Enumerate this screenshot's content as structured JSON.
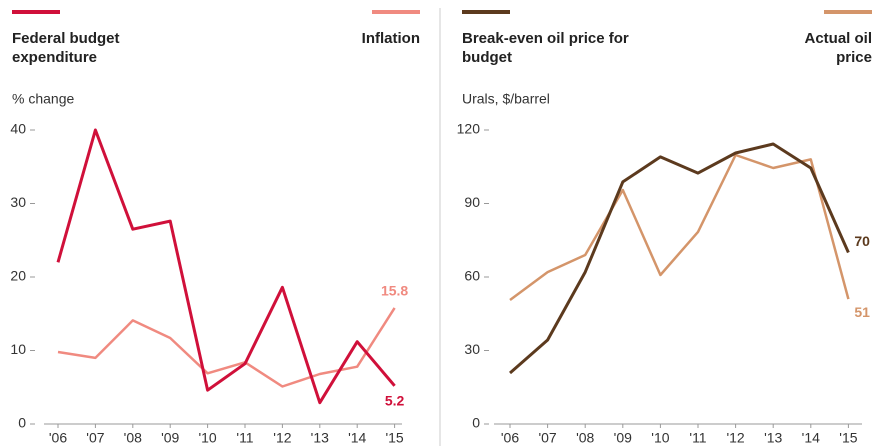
{
  "chart_data": [
    {
      "type": "line",
      "ylabel": "% change",
      "categories": [
        "'06",
        "'07",
        "'08",
        "'09",
        "'10",
        "'11",
        "'12",
        "'13",
        "'14",
        "'15"
      ],
      "series": [
        {
          "name": "Federal budget expenditure",
          "color": "#d0103a",
          "values": [
            22,
            40,
            26.5,
            27.6,
            4.6,
            8.2,
            18.6,
            2.9,
            11.2,
            5.2
          ]
        },
        {
          "name": "Inflation",
          "color": "#f08a80",
          "values": [
            9.8,
            9,
            14.1,
            11.7,
            6.9,
            8.4,
            5.1,
            6.8,
            7.8,
            15.8
          ]
        }
      ],
      "ylim": [
        0,
        40
      ],
      "yticks": [
        0,
        10,
        20,
        30,
        40
      ]
    },
    {
      "type": "line",
      "ylabel": "Urals, $/barrel",
      "categories": [
        "'06",
        "'07",
        "'08",
        "'09",
        "'10",
        "'11",
        "'12",
        "'13",
        "'14",
        "'15"
      ],
      "series": [
        {
          "name": "Break-even oil price for budget",
          "color": "#5c3a1e",
          "values": [
            20.8,
            34.3,
            62,
            98.8,
            109,
            102.4,
            110.6,
            114.3,
            104.5,
            70
          ]
        },
        {
          "name": "Actual oil price",
          "color": "#d4956a",
          "values": [
            50.6,
            62,
            69,
            95.5,
            60.8,
            78.4,
            109.8,
            104.5,
            108,
            51
          ]
        }
      ],
      "ylim": [
        0,
        120
      ],
      "yticks": [
        0,
        30,
        60,
        90,
        120
      ]
    }
  ]
}
